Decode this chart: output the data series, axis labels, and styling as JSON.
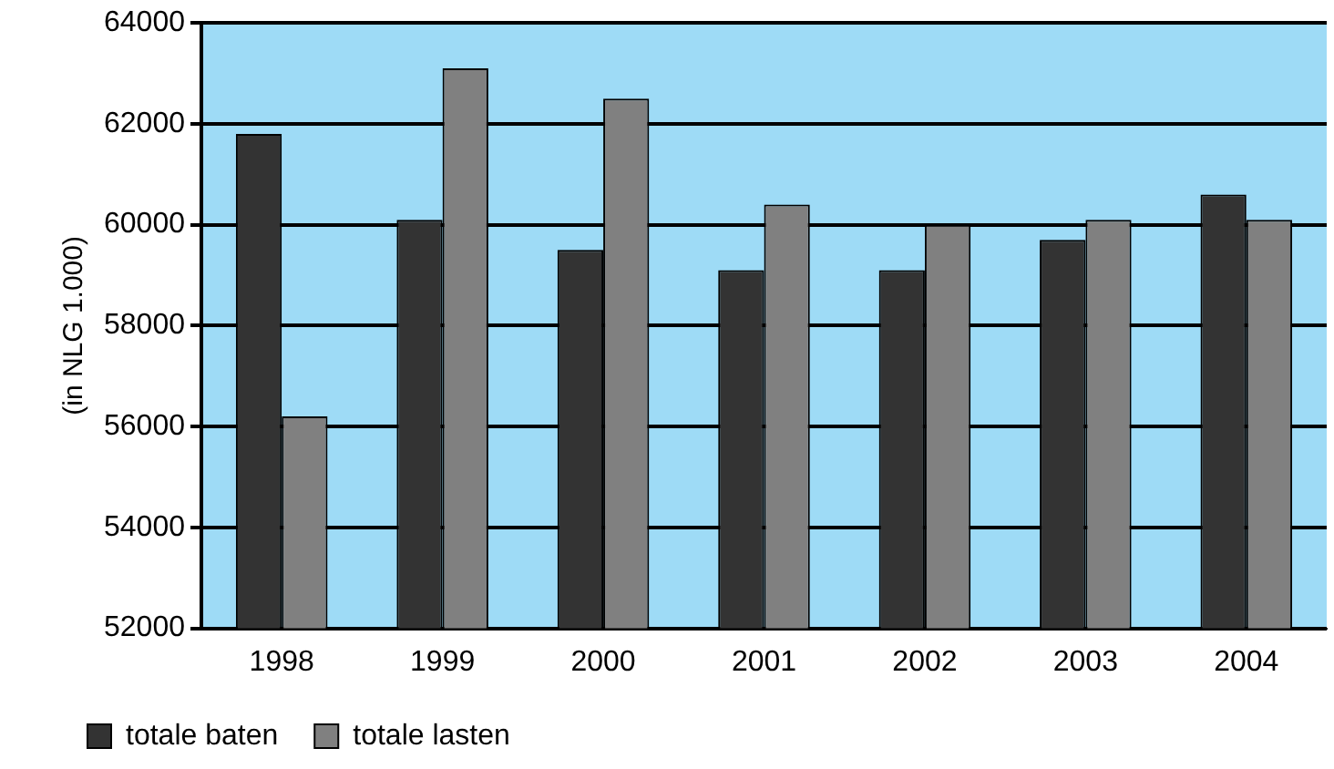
{
  "chart_data": {
    "type": "bar",
    "ylabel": "(in NLG 1.000)",
    "categories": [
      "1998",
      "1999",
      "2000",
      "2001",
      "2002",
      "2003",
      "2004"
    ],
    "series": [
      {
        "name": "totale baten",
        "color": "#333333",
        "values": [
          61800,
          60100,
          59500,
          59100,
          59100,
          59700,
          60600
        ]
      },
      {
        "name": "totale lasten",
        "color": "#808080",
        "values": [
          56200,
          63100,
          62500,
          60400,
          60000,
          60100,
          60100
        ]
      }
    ],
    "ylim": [
      52000,
      64000
    ],
    "yticks": [
      52000,
      54000,
      56000,
      58000,
      60000,
      62000,
      64000
    ],
    "grid": "y",
    "legend": "bottom"
  }
}
